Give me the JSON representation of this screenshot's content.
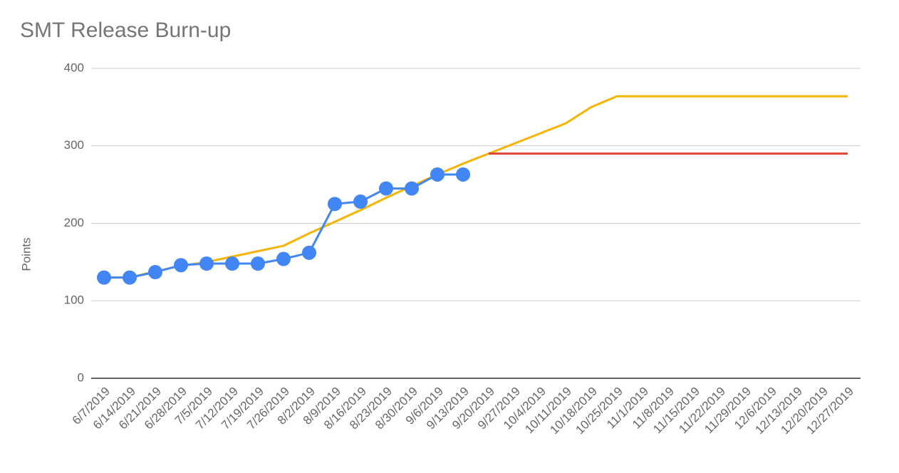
{
  "chart_data": {
    "type": "line",
    "title": "SMT Release Burn-up",
    "y_label": "Points",
    "categories": [
      "6/7/2019",
      "6/14/2019",
      "6/21/2019",
      "6/28/2019",
      "7/5/2019",
      "7/12/2019",
      "7/19/2019",
      "7/26/2019",
      "8/2/2019",
      "8/9/2019",
      "8/16/2019",
      "8/23/2019",
      "8/30/2019",
      "9/6/2019",
      "9/13/2019",
      "9/20/2019",
      "9/27/2019",
      "10/4/2019",
      "10/11/2019",
      "10/18/2019",
      "10/25/2019",
      "11/1/2019",
      "11/8/2019",
      "11/15/2019",
      "11/22/2019",
      "11/29/2019",
      "12/6/2019",
      "12/13/2019",
      "12/20/2019",
      "12/27/2019"
    ],
    "series": [
      {
        "color": "#f4b400",
        "markers": false,
        "values": [
          130,
          130,
          138,
          145,
          150,
          157,
          164,
          171,
          187,
          202,
          217,
          233,
          248,
          263,
          277,
          290,
          303,
          316,
          329,
          350,
          364,
          364,
          364,
          364,
          364,
          364,
          364,
          364,
          364,
          364
        ]
      },
      {
        "color": "#db4437",
        "markers": false,
        "values": [
          null,
          null,
          null,
          null,
          null,
          null,
          null,
          null,
          null,
          null,
          null,
          null,
          null,
          null,
          null,
          290,
          290,
          290,
          290,
          290,
          290,
          290,
          290,
          290,
          290,
          290,
          290,
          290,
          290,
          290
        ]
      },
      {
        "color": "#4285f4",
        "markers": true,
        "values": [
          130,
          130,
          137,
          146,
          148,
          148,
          148,
          154,
          162,
          225,
          228,
          245,
          245,
          263,
          263,
          null,
          null,
          null,
          null,
          null,
          null,
          null,
          null,
          null,
          null,
          null,
          null,
          null,
          null,
          null
        ]
      }
    ],
    "ylim": [
      0,
      400
    ],
    "yticks": [
      0,
      100,
      200,
      300,
      400
    ],
    "grid": true
  }
}
